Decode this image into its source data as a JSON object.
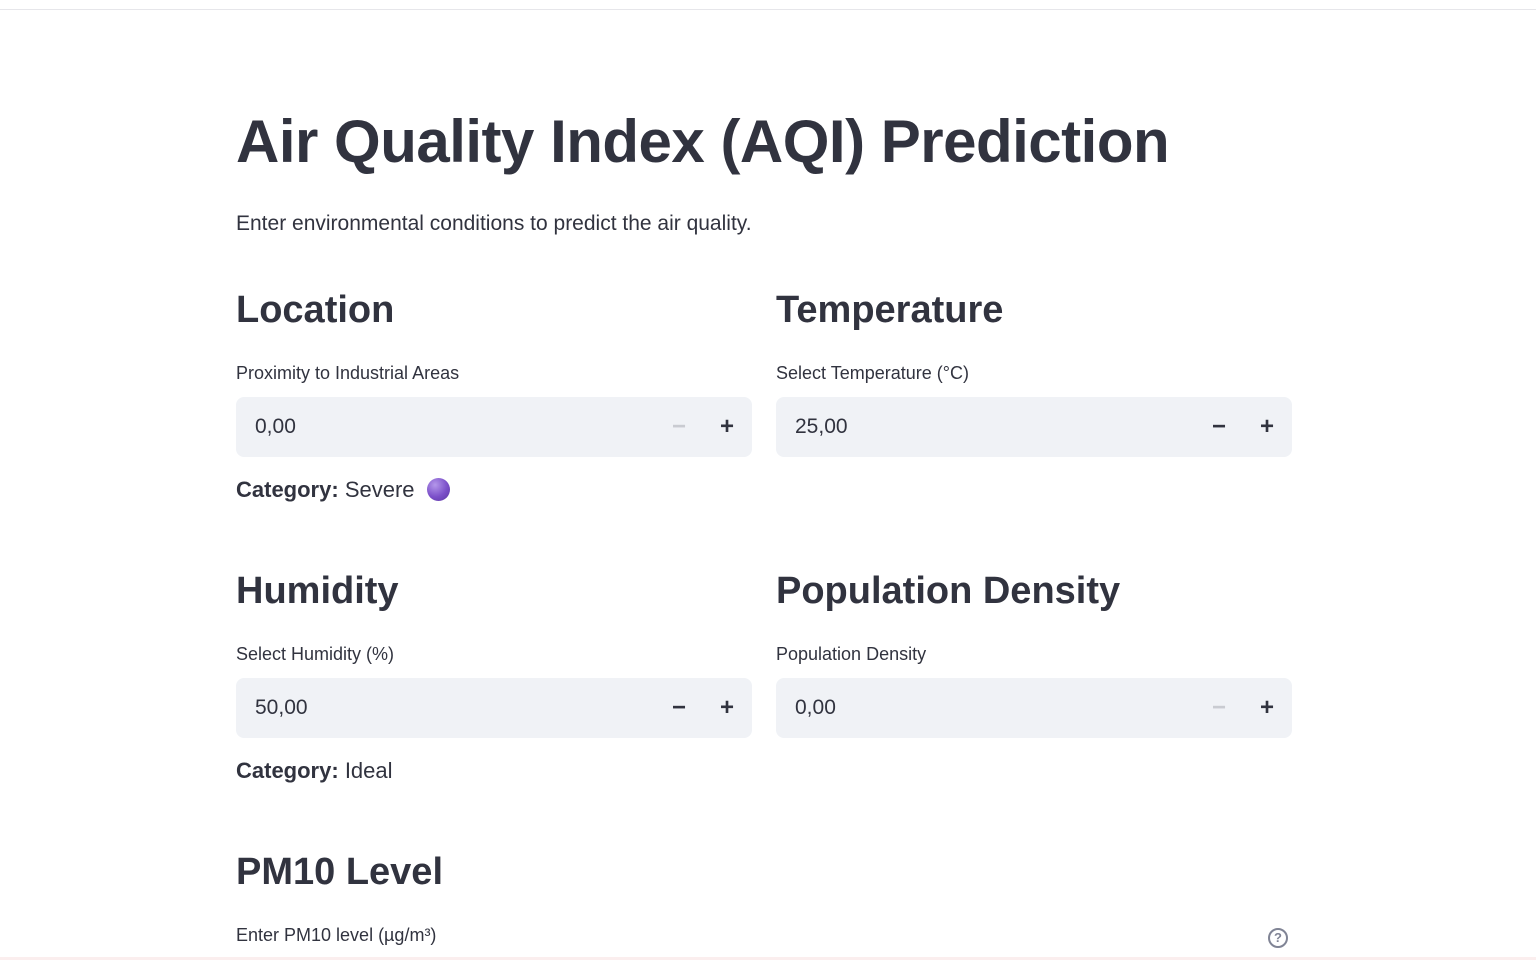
{
  "header": {
    "title": "Air Quality Index (AQI) Prediction",
    "subtitle": "Enter environmental conditions to predict the air quality."
  },
  "sections": {
    "location": {
      "heading": "Location",
      "label": "Proximity to Industrial Areas",
      "value": "0,00",
      "minus": "−",
      "plus": "+",
      "minus_disabled": true,
      "category_label": "Category:",
      "category_value": "Severe",
      "category_icon": "purple-circle-icon",
      "category_color": "#7b4fc9"
    },
    "temperature": {
      "heading": "Temperature",
      "label": "Select Temperature (°C)",
      "value": "25,00",
      "minus": "−",
      "plus": "+",
      "minus_disabled": false
    },
    "humidity": {
      "heading": "Humidity",
      "label": "Select Humidity (%)",
      "value": "50,00",
      "minus": "−",
      "plus": "+",
      "minus_disabled": false,
      "category_label": "Category:",
      "category_value": "Ideal"
    },
    "population": {
      "heading": "Population Density",
      "label": "Population Density",
      "value": "0,00",
      "minus": "−",
      "plus": "+",
      "minus_disabled": true
    },
    "pm10": {
      "heading": "PM10 Level",
      "label": "Enter PM10 level (µg/m³)",
      "help": "?",
      "help_icon": "question-circle-icon"
    }
  },
  "colors": {
    "text": "#31333f",
    "input_bg": "#f0f2f6",
    "disabled": "#c9cbd1",
    "muted": "#808495"
  }
}
